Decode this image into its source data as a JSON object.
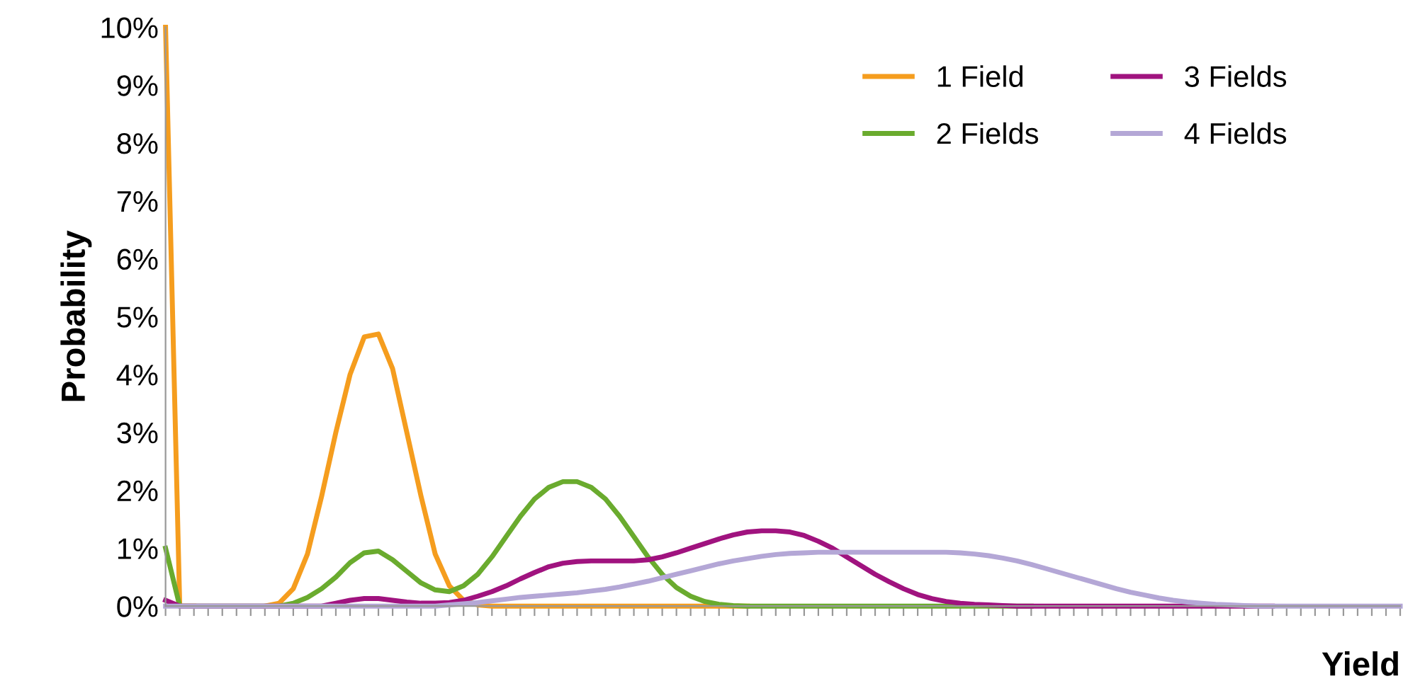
{
  "chart_data": {
    "type": "line",
    "xlabel": "Yield",
    "ylabel": "Probability",
    "categories": [
      null,
      null,
      null,
      null,
      null,
      null,
      null,
      null,
      null,
      null,
      null,
      null,
      null,
      null,
      null,
      null,
      null,
      null,
      null,
      null,
      null,
      null,
      null,
      null,
      null,
      null,
      null,
      null,
      null,
      null,
      null,
      null,
      null,
      null,
      null,
      null,
      null,
      null,
      null,
      null,
      null,
      null,
      null,
      null,
      null,
      null,
      null,
      null,
      null,
      null,
      null,
      null,
      null,
      null,
      null,
      null,
      null,
      null,
      null,
      null,
      null,
      null,
      null,
      null,
      null,
      null,
      null,
      null,
      null,
      null,
      null,
      null,
      null,
      null,
      null,
      null,
      null,
      null,
      null,
      null,
      null,
      null,
      null,
      null,
      null,
      null,
      null,
      null
    ],
    "ylim": [
      0,
      10
    ],
    "yticks": [
      {
        "value": 0,
        "label": "0%"
      },
      {
        "value": 1,
        "label": "1%"
      },
      {
        "value": 2,
        "label": "2%"
      },
      {
        "value": 3,
        "label": "3%"
      },
      {
        "value": 4,
        "label": "4%"
      },
      {
        "value": 5,
        "label": "5%"
      },
      {
        "value": 6,
        "label": "6%"
      },
      {
        "value": 7,
        "label": "7%"
      },
      {
        "value": 8,
        "label": "8%"
      },
      {
        "value": 9,
        "label": "9%"
      },
      {
        "value": 10,
        "label": "10%"
      }
    ],
    "tick_labels": "y",
    "grid": false,
    "legend": "top right",
    "marker": "none",
    "line_style": "solid",
    "series": [
      {
        "name": "1 Field",
        "color": "#f59d1e",
        "values": [
          10,
          0,
          0,
          null,
          null,
          null,
          null,
          0,
          0.05,
          0.3,
          0.9,
          1.9,
          3.0,
          4.0,
          4.65,
          4.7,
          4.1,
          3.0,
          1.9,
          0.9,
          0.35,
          0.1,
          0.02,
          0,
          0,
          0,
          0,
          0,
          0,
          0,
          0,
          0,
          0,
          0,
          0,
          0,
          0,
          0,
          0,
          0,
          0,
          0,
          null,
          null,
          null,
          null,
          null,
          null,
          null,
          null,
          null,
          null,
          null,
          null,
          null,
          null,
          null,
          null,
          null,
          null,
          null,
          null,
          null,
          null,
          null,
          null,
          null,
          null,
          null,
          null,
          null,
          null,
          null,
          null,
          null,
          null,
          null,
          null,
          null,
          null,
          null,
          null,
          null,
          null,
          null,
          null,
          null,
          null
        ]
      },
      {
        "name": "2 Fields",
        "color": "#6aab2e",
        "values": [
          1.0,
          0,
          0,
          0,
          0,
          0,
          0,
          0,
          0,
          0.05,
          0.15,
          0.3,
          0.5,
          0.75,
          0.92,
          0.95,
          0.8,
          0.6,
          0.4,
          0.28,
          0.25,
          0.35,
          0.55,
          0.85,
          1.2,
          1.55,
          1.85,
          2.05,
          2.15,
          2.15,
          2.05,
          1.85,
          1.55,
          1.2,
          0.85,
          0.55,
          0.32,
          0.17,
          0.08,
          0.03,
          0.01,
          0,
          0,
          0,
          0,
          0,
          0,
          0,
          0,
          0,
          0,
          0,
          0,
          0,
          0,
          0,
          0,
          0,
          0,
          0,
          0,
          0,
          null,
          null,
          null,
          null,
          null,
          null,
          null,
          null,
          null,
          null,
          null,
          null,
          null,
          null,
          null,
          null,
          null,
          null,
          null,
          null,
          null,
          null,
          null,
          null,
          null,
          null
        ]
      },
      {
        "name": "3 Fields",
        "color": "#a0137f",
        "values": [
          0.1,
          0,
          0,
          0,
          0,
          0,
          0,
          0,
          0,
          0,
          0,
          0,
          0.05,
          0.1,
          0.13,
          0.13,
          0.1,
          0.07,
          0.05,
          0.05,
          0.06,
          0.1,
          0.17,
          0.25,
          0.35,
          0.47,
          0.58,
          0.68,
          0.74,
          0.77,
          0.78,
          0.78,
          0.78,
          0.78,
          0.8,
          0.85,
          0.92,
          1.0,
          1.08,
          1.16,
          1.23,
          1.28,
          1.3,
          1.3,
          1.28,
          1.22,
          1.12,
          1.0,
          0.85,
          0.7,
          0.55,
          0.42,
          0.3,
          0.2,
          0.13,
          0.08,
          0.05,
          0.03,
          0.02,
          0.01,
          0,
          0,
          0,
          0,
          0,
          0,
          0,
          0,
          0,
          0,
          0,
          0,
          0,
          0,
          0,
          0,
          0,
          0,
          0,
          null,
          null,
          null,
          null,
          null,
          null,
          null,
          null,
          null
        ]
      },
      {
        "name": "4 Fields",
        "color": "#b4a7d6",
        "values": [
          0,
          0,
          0,
          0,
          0,
          0,
          0,
          0,
          0,
          0,
          0,
          0,
          0,
          0,
          0,
          0,
          0,
          0,
          0,
          0,
          0.02,
          0.04,
          0.06,
          0.09,
          0.12,
          0.15,
          0.17,
          0.19,
          0.21,
          0.23,
          0.26,
          0.29,
          0.33,
          0.38,
          0.43,
          0.49,
          0.55,
          0.61,
          0.67,
          0.73,
          0.78,
          0.82,
          0.86,
          0.89,
          0.91,
          0.92,
          0.93,
          0.93,
          0.93,
          0.93,
          0.93,
          0.93,
          0.93,
          0.93,
          0.93,
          0.93,
          0.92,
          0.9,
          0.87,
          0.83,
          0.78,
          0.72,
          0.65,
          0.58,
          0.51,
          0.44,
          0.37,
          0.3,
          0.24,
          0.19,
          0.14,
          0.1,
          0.07,
          0.05,
          0.03,
          0.02,
          0.01,
          0,
          0,
          0,
          0,
          0,
          0,
          0,
          0,
          0,
          0,
          0
        ]
      }
    ]
  }
}
